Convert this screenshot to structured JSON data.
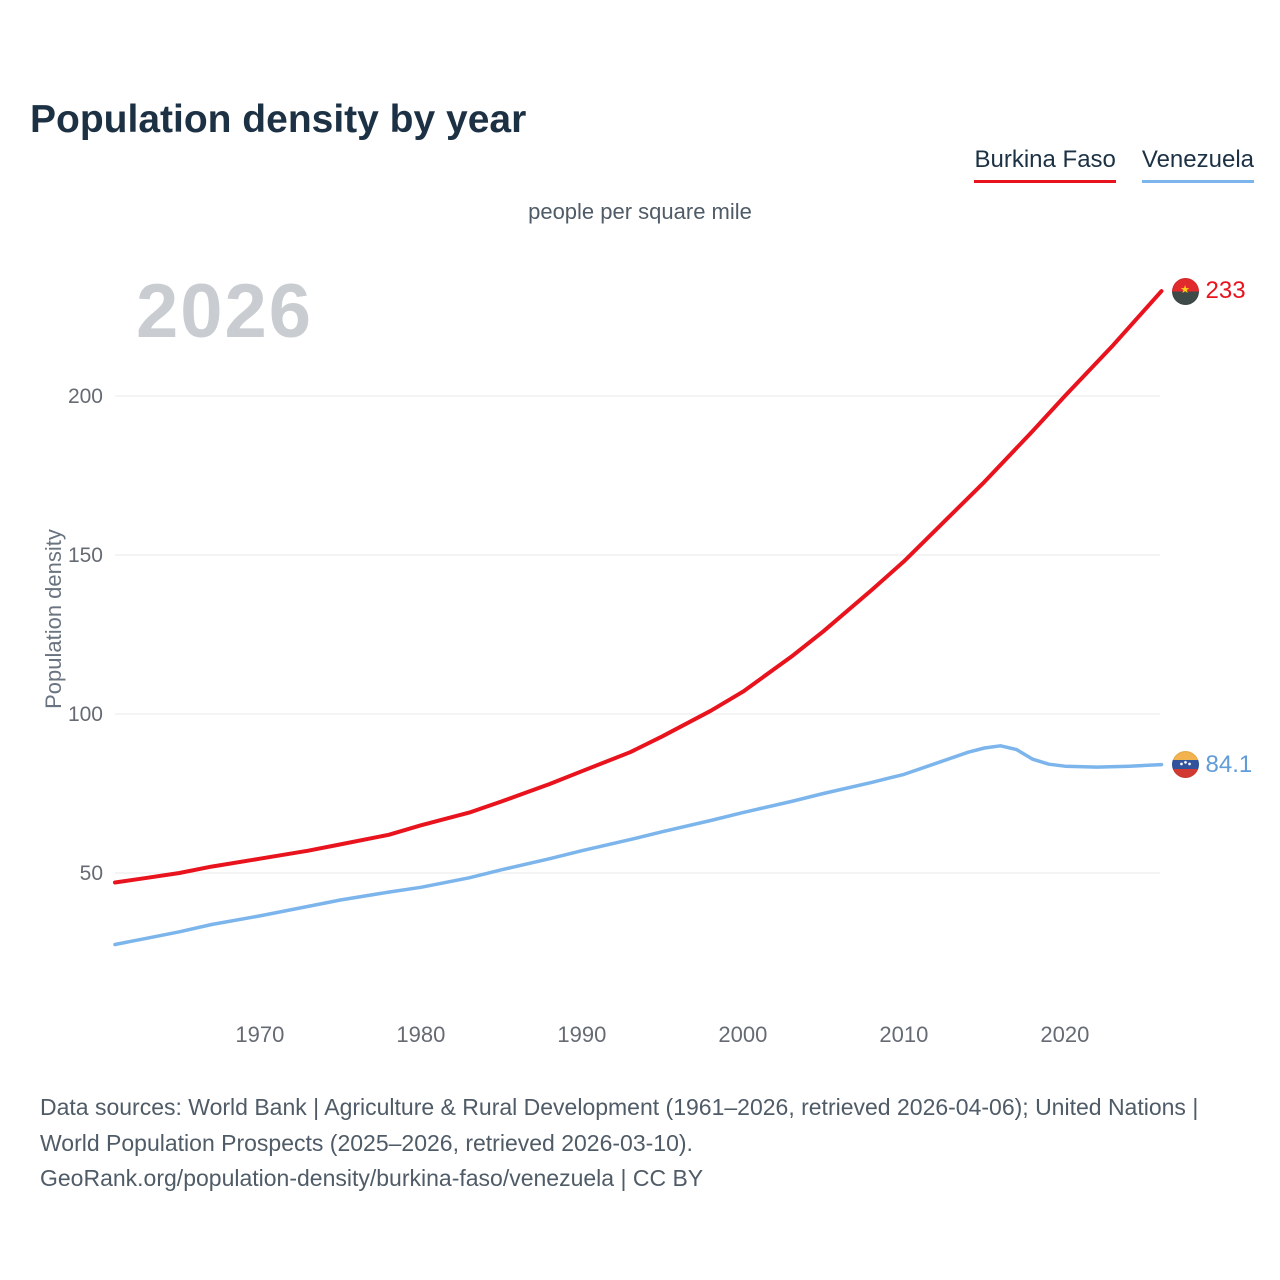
{
  "page": {
    "title": "Population density by year",
    "unit_label": "people per square mile",
    "watermark_year": "2026",
    "y_axis_label": "Population density"
  },
  "legend": {
    "items": [
      {
        "label": "Burkina Faso",
        "color": "#e8131d"
      },
      {
        "label": "Venezuela",
        "color": "#7cb5ec"
      }
    ]
  },
  "chart_data": {
    "type": "line",
    "title": "Population density by year",
    "unit": "people per square mile",
    "ylabel": "Population density",
    "xlim": [
      1961,
      2026
    ],
    "ylim": [
      20,
      240
    ],
    "x_ticks": [
      1970,
      1980,
      1990,
      2000,
      2010,
      2020
    ],
    "y_ticks": [
      50,
      100,
      150,
      200
    ],
    "grid": "horizontal",
    "legend_position": "top-right",
    "series": [
      {
        "name": "Burkina Faso",
        "color": "#e8131d",
        "end_label": "233",
        "flag_icon": "burkina-faso-flag",
        "x": [
          1961,
          1963,
          1965,
          1967,
          1970,
          1973,
          1975,
          1978,
          1980,
          1983,
          1985,
          1988,
          1990,
          1993,
          1995,
          1998,
          2000,
          2003,
          2005,
          2008,
          2010,
          2013,
          2015,
          2018,
          2020,
          2023,
          2026
        ],
        "values": [
          47,
          48.5,
          50,
          52,
          54.5,
          57,
          59,
          62,
          65,
          69,
          72.5,
          78,
          82,
          88,
          93,
          101,
          107,
          118,
          126,
          139,
          148,
          163,
          173,
          189,
          200,
          216,
          233
        ]
      },
      {
        "name": "Venezuela",
        "color": "#7cb5ec",
        "end_label": "84.1",
        "flag_icon": "venezuela-flag",
        "x": [
          1961,
          1963,
          1965,
          1967,
          1970,
          1973,
          1975,
          1978,
          1980,
          1983,
          1985,
          1988,
          1990,
          1993,
          1995,
          1998,
          2000,
          2003,
          2005,
          2008,
          2010,
          2012,
          2014,
          2015,
          2016,
          2017,
          2018,
          2019,
          2020,
          2022,
          2024,
          2026
        ],
        "values": [
          27.5,
          29.5,
          31.5,
          33.8,
          36.5,
          39.5,
          41.5,
          44,
          45.5,
          48.5,
          51,
          54.5,
          57,
          60.5,
          63,
          66.5,
          69,
          72.5,
          75,
          78.5,
          81,
          84.5,
          88,
          89.3,
          90,
          88.8,
          85.8,
          84.2,
          83.6,
          83.3,
          83.6,
          84.1
        ]
      }
    ]
  },
  "footer": {
    "sources": "Data sources: World Bank | Agriculture & Rural Development (1961–2026, retrieved 2026-04-06); United Nations | World Population Prospects (2025–2026, retrieved 2026-03-10).",
    "attribution": "GeoRank.org/population-density/burkina-faso/venezuela | CC BY"
  }
}
